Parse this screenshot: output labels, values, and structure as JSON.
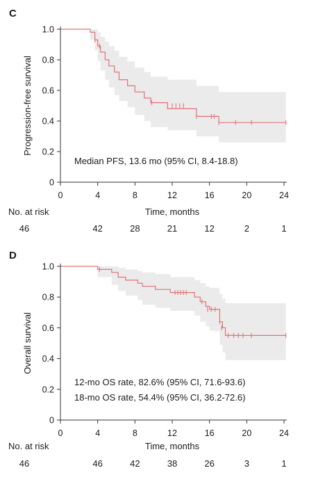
{
  "chart_data": [
    {
      "type": "line",
      "panel_label": "C",
      "ylabel": "Progression-free survival",
      "xlabel": "Time, months",
      "xlim": [
        0,
        24
      ],
      "ylim": [
        0,
        1.0
      ],
      "xticks": [
        0,
        4,
        8,
        12,
        16,
        20,
        24
      ],
      "xtick_labels": [
        "0",
        "4",
        "8",
        "12",
        "16",
        "20",
        "24"
      ],
      "yticks": [
        0,
        0.2,
        0.4,
        0.6,
        0.8,
        1.0
      ],
      "ytick_labels": [
        "0",
        "0.2",
        "0.4",
        "0.6",
        "0.8",
        "1.0"
      ],
      "line_color": "#e0737a",
      "ci_color": "#ebebeb",
      "series": [
        {
          "step_x": [
            0,
            3.2,
            3.7,
            4.0,
            4.3,
            4.8,
            5.2,
            5.8,
            6.3,
            7.2,
            8.0,
            9.0,
            9.7,
            11.5,
            14.6,
            17.0,
            24.2
          ],
          "step_y": [
            1.0,
            0.98,
            0.93,
            0.89,
            0.85,
            0.8,
            0.76,
            0.72,
            0.67,
            0.63,
            0.59,
            0.55,
            0.52,
            0.48,
            0.43,
            0.39,
            0.39
          ],
          "ci_upper": [
            1.0,
            1.0,
            1.0,
            0.98,
            0.95,
            0.92,
            0.89,
            0.86,
            0.82,
            0.79,
            0.75,
            0.72,
            0.69,
            0.67,
            0.63,
            0.59,
            0.59
          ],
          "ci_lower": [
            1.0,
            0.93,
            0.86,
            0.79,
            0.73,
            0.67,
            0.62,
            0.57,
            0.53,
            0.49,
            0.44,
            0.4,
            0.36,
            0.34,
            0.3,
            0.26,
            0.26
          ],
          "censor_x": [
            3.7,
            4.2,
            9.8,
            12.0,
            12.4,
            12.8,
            13.2,
            14.6,
            16.2,
            16.5,
            17.0,
            18.8,
            20.5,
            24.2
          ],
          "censor_y": [
            0.93,
            0.89,
            0.52,
            0.5,
            0.5,
            0.5,
            0.5,
            0.43,
            0.43,
            0.43,
            0.39,
            0.39,
            0.39,
            0.39
          ]
        }
      ],
      "annotations": [
        "Median PFS, 13.6 mo (95% CI, 8.4-18.8)"
      ],
      "risk_table": {
        "label": "No. at risk",
        "times": [
          0,
          4,
          8,
          12,
          16,
          20,
          24
        ],
        "values": [
          "46",
          "42",
          "28",
          "21",
          "12",
          "2",
          "1"
        ]
      }
    },
    {
      "type": "line",
      "panel_label": "D",
      "ylabel": "Overall survival",
      "xlabel": "Time, months",
      "xlim": [
        0,
        24
      ],
      "ylim": [
        0,
        1.0
      ],
      "xticks": [
        0,
        4,
        8,
        12,
        16,
        20,
        24
      ],
      "xtick_labels": [
        "0",
        "4",
        "8",
        "12",
        "16",
        "20",
        "24"
      ],
      "yticks": [
        0,
        0.2,
        0.4,
        0.6,
        0.8,
        1.0
      ],
      "ytick_labels": [
        "0",
        "0.2",
        "0.4",
        "0.6",
        "0.8",
        "1.0"
      ],
      "line_color": "#e0737a",
      "ci_color": "#ebebeb",
      "series": [
        {
          "step_x": [
            0,
            4.0,
            5.5,
            6.2,
            7.0,
            8.3,
            8.8,
            10.2,
            11.8,
            14.4,
            15.0,
            15.6,
            16.0,
            17.1,
            17.4,
            17.7,
            24.2
          ],
          "step_y": [
            1.0,
            0.98,
            0.96,
            0.93,
            0.91,
            0.89,
            0.87,
            0.85,
            0.83,
            0.8,
            0.77,
            0.74,
            0.72,
            0.64,
            0.6,
            0.55,
            0.55
          ],
          "ci_upper": [
            1.0,
            1.0,
            1.0,
            0.99,
            0.98,
            0.97,
            0.96,
            0.95,
            0.93,
            0.91,
            0.89,
            0.87,
            0.86,
            0.82,
            0.79,
            0.76,
            0.76
          ],
          "ci_lower": [
            1.0,
            0.93,
            0.88,
            0.84,
            0.81,
            0.78,
            0.75,
            0.73,
            0.71,
            0.68,
            0.64,
            0.61,
            0.58,
            0.49,
            0.44,
            0.39,
            0.39
          ],
          "censor_x": [
            4.2,
            12.3,
            12.6,
            12.9,
            13.2,
            13.5,
            15.2,
            15.8,
            16.2,
            16.6,
            17.1,
            17.3,
            18.0,
            18.6,
            19.1,
            19.6,
            20.5,
            24.2
          ],
          "censor_y": [
            0.98,
            0.83,
            0.83,
            0.83,
            0.83,
            0.83,
            0.77,
            0.72,
            0.72,
            0.72,
            0.64,
            0.6,
            0.55,
            0.55,
            0.55,
            0.55,
            0.55,
            0.55
          ]
        }
      ],
      "annotations": [
        "12-mo OS rate, 82.6% (95% CI, 71.6-93.6)",
        "18-mo OS rate, 54.4% (95% CI, 36.2-72.6)"
      ],
      "risk_table": {
        "label": "No. at risk",
        "times": [
          0,
          4,
          8,
          12,
          16,
          20,
          24
        ],
        "values": [
          "46",
          "46",
          "42",
          "38",
          "26",
          "3",
          "1"
        ]
      }
    }
  ]
}
